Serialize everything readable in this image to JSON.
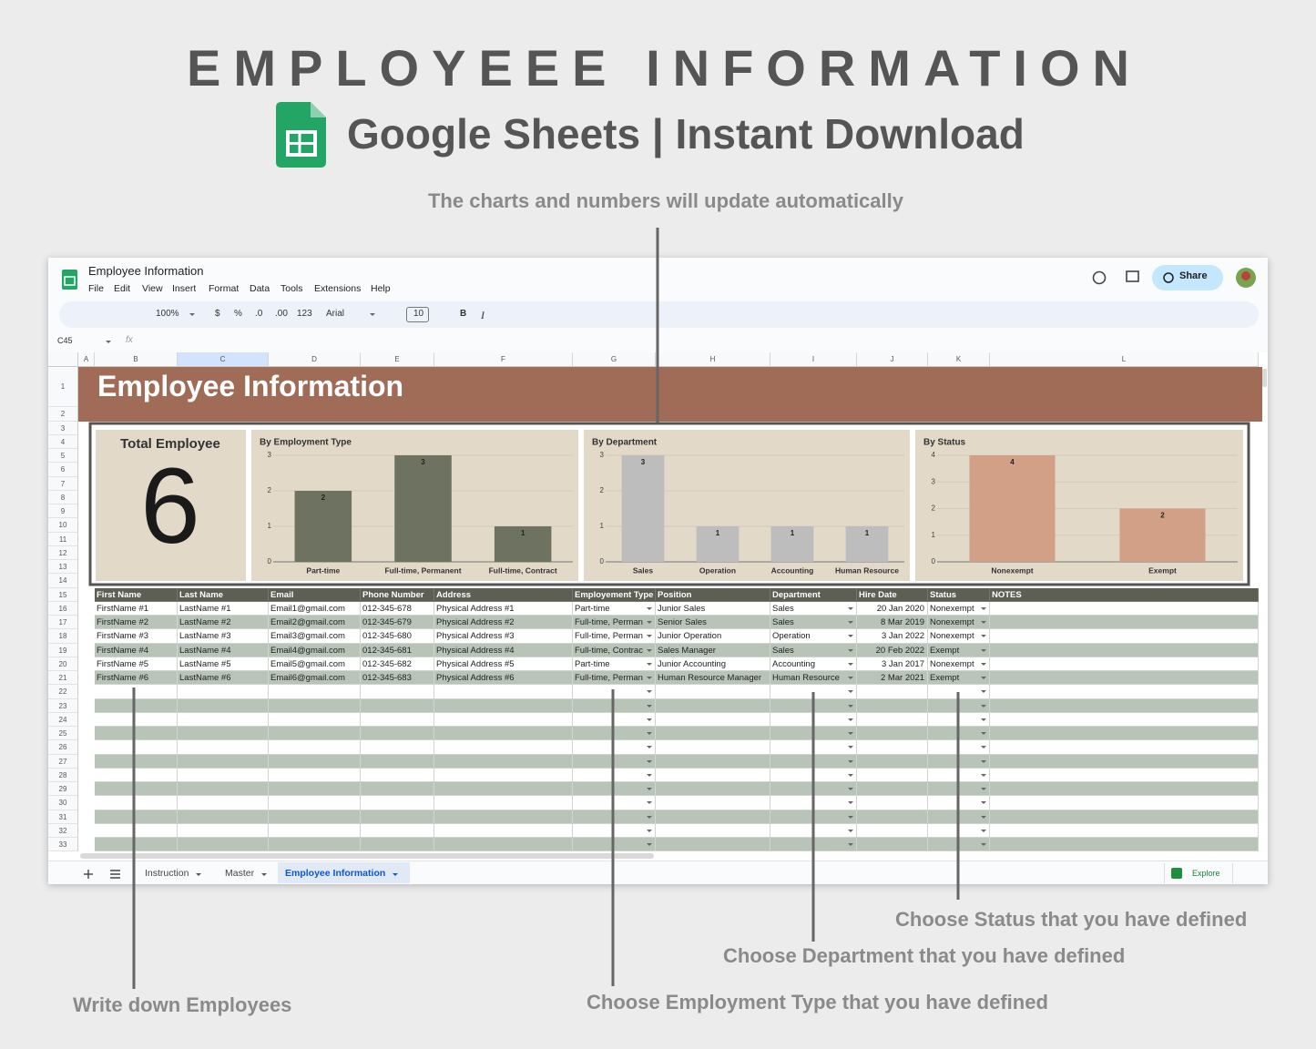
{
  "header": {
    "title": "EMPLOYEEE INFORMATION",
    "subtitle": "Google Sheets | Instant Download",
    "note": "The charts and numbers will update automatically"
  },
  "app": {
    "doc_title": "Employee Information",
    "menu": [
      "File",
      "Edit",
      "View",
      "Insert",
      "Format",
      "Data",
      "Tools",
      "Extensions",
      "Help"
    ],
    "toolbar": [
      "100%",
      "$",
      "%",
      ".0",
      ".00",
      "123",
      "Arial",
      "10",
      "B",
      "I"
    ],
    "share": "Share",
    "cell_ref": "C45",
    "formula_icon": "fx",
    "columns": [
      "A",
      "B",
      "C",
      "D",
      "E",
      "F",
      "G",
      "H",
      "I",
      "J",
      "K",
      "L"
    ],
    "rows": [
      1,
      2,
      3,
      4,
      5,
      6,
      7,
      8,
      9,
      10,
      11,
      12,
      13,
      14,
      15,
      16,
      17,
      18,
      19,
      20,
      21,
      22,
      23,
      24,
      25,
      26,
      27,
      28,
      29,
      30,
      31,
      32,
      33
    ],
    "tabs": [
      "Instruction",
      "Master",
      "Employee Information"
    ],
    "explore": "Explore"
  },
  "sheet": {
    "banner": "Employee Information",
    "total": {
      "label": "Total Employee",
      "value": 6
    },
    "charts": [
      {
        "type": "bar",
        "title": "By Employment Type",
        "categories": [
          "Part-time",
          "Full-time, Permanent",
          "Full-time, Contract"
        ],
        "values": [
          2,
          3,
          1
        ],
        "color": "#6e7261",
        "ylim": [
          0,
          3
        ],
        "yticks": [
          0,
          1,
          2,
          3
        ]
      },
      {
        "type": "bar",
        "title": "By Department",
        "categories": [
          "Sales",
          "Operation",
          "Accounting",
          "Human Resource"
        ],
        "values": [
          3,
          1,
          1,
          1
        ],
        "color": "#bdbdbd",
        "ylim": [
          0,
          3
        ],
        "yticks": [
          0,
          1,
          2,
          3
        ]
      },
      {
        "type": "bar",
        "title": "By Status",
        "categories": [
          "Nonexempt",
          "Exempt"
        ],
        "values": [
          4,
          2
        ],
        "color": "#d2a086",
        "ylim": [
          0,
          4
        ],
        "yticks": [
          0,
          1,
          2,
          3,
          4
        ]
      }
    ],
    "table": {
      "headers": [
        "First Name",
        "Last Name",
        "Email",
        "Phone Number",
        "Address",
        "Employement Type",
        "Position",
        "Department",
        "Hire Date",
        "Status",
        "NOTES"
      ],
      "rows": [
        [
          "FirstName #1",
          "LastName #1",
          "Email1@gmail.com",
          "012-345-678",
          "Physical Address #1",
          "Part-time",
          "Junior Sales",
          "Sales",
          "20 Jan 2020",
          "Nonexempt"
        ],
        [
          "FirstName #2",
          "LastName #2",
          "Email2@gmail.com",
          "012-345-679",
          "Physical Address #2",
          "Full-time, Perman",
          "Senior Sales",
          "Sales",
          "8 Mar 2019",
          "Nonexempt"
        ],
        [
          "FirstName #3",
          "LastName #3",
          "Email3@gmail.com",
          "012-345-680",
          "Physical Address #3",
          "Full-time, Perman",
          "Junior Operation",
          "Operation",
          "3 Jan 2022",
          "Nonexempt"
        ],
        [
          "FirstName #4",
          "LastName #4",
          "Email4@gmail.com",
          "012-345-681",
          "Physical Address #4",
          "Full-time, Contrac",
          "Sales Manager",
          "Sales",
          "20 Feb 2022",
          "Exempt"
        ],
        [
          "FirstName #5",
          "LastName #5",
          "Email5@gmail.com",
          "012-345-682",
          "Physical Address #5",
          "Part-time",
          "Junior Accounting",
          "Accounting",
          "3 Jan 2017",
          "Nonexempt"
        ],
        [
          "FirstName #6",
          "LastName #6",
          "Email6@gmail.com",
          "012-345-683",
          "Physical Address #6",
          "Full-time, Perman",
          "Human Resource Manager",
          "Human Resource",
          "2 Mar 2021",
          "Exempt"
        ]
      ]
    }
  },
  "annotations": [
    "Write down Employees",
    "Choose Employment Type that you have defined",
    "Choose Department that you have defined",
    "Choose Status that you have defined"
  ]
}
